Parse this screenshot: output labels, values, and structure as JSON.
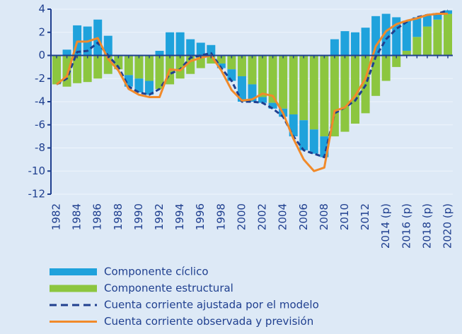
{
  "chart_data": {
    "type": "bar",
    "categories": [
      "1982",
      null,
      "1984",
      null,
      "1986",
      null,
      "1988",
      null,
      "1990",
      null,
      "1992",
      null,
      "1994",
      null,
      "1996",
      null,
      "1998",
      null,
      "2000",
      null,
      "2002",
      null,
      "2004",
      null,
      "2006",
      null,
      "2008",
      null,
      "2010",
      null,
      "2012",
      null,
      "2014 (p)",
      null,
      "2016 (p)",
      null,
      "2018 (p)",
      null,
      "2020 (p)"
    ],
    "series": [
      {
        "name": "Componente cíclico",
        "type": "bar",
        "color": "#1fa2dc",
        "values": [
          0,
          0.5,
          2.6,
          2.5,
          3.1,
          1.7,
          0,
          -1.0,
          -1.2,
          -1.2,
          0.4,
          2.0,
          2.0,
          1.4,
          1.1,
          0.9,
          -0.4,
          -1.0,
          -2.2,
          -1.5,
          -0.5,
          -0.5,
          -0.7,
          -1.9,
          -2.6,
          -2.1,
          -1.8,
          1.4,
          2.1,
          2.0,
          2.4,
          3.4,
          3.6,
          3.3,
          2.6,
          1.7,
          1.0,
          0.5,
          0.3
        ]
      },
      {
        "name": "Componente estructural",
        "type": "bar",
        "color": "#8cc63f",
        "values": [
          -2.5,
          -2.7,
          -2.4,
          -2.3,
          -2.0,
          -1.6,
          -1.2,
          -1.7,
          -2.0,
          -2.2,
          -2.9,
          -2.5,
          -2.0,
          -1.6,
          -1.1,
          -0.7,
          -0.7,
          -1.2,
          -1.8,
          -2.5,
          -3.6,
          -4.1,
          -4.6,
          -5.1,
          -5.6,
          -6.4,
          -7.0,
          -7.0,
          -6.6,
          -5.9,
          -5.0,
          -3.5,
          -2.2,
          -1.0,
          0.4,
          1.6,
          2.5,
          3.1,
          3.6
        ]
      },
      {
        "name": "Cuenta corriente ajustada por el modelo",
        "type": "line",
        "dashed": true,
        "color": "#1f3f8f",
        "values": [
          -2.5,
          -2.0,
          0.3,
          0.4,
          1.1,
          0.0,
          -1.0,
          -2.7,
          -3.2,
          -3.4,
          -2.9,
          -1.6,
          -1.2,
          -0.2,
          0.0,
          0.2,
          -1.1,
          -2.2,
          -4.0,
          -4.0,
          -4.1,
          -4.6,
          -5.3,
          -7.0,
          -8.2,
          -8.5,
          -8.8,
          -5.0,
          -4.5,
          -3.9,
          -2.6,
          -0.1,
          1.4,
          2.3,
          2.9,
          3.3,
          3.5,
          3.6,
          3.9
        ]
      },
      {
        "name": "Cuenta corriente observada y previsión",
        "type": "line",
        "dashed": false,
        "color": "#f18a2a",
        "values": [
          -2.5,
          -1.8,
          1.2,
          1.2,
          1.5,
          -0.3,
          -1.3,
          -2.9,
          -3.4,
          -3.6,
          -3.6,
          -1.2,
          -1.3,
          -0.5,
          -0.2,
          0.0,
          -1.3,
          -3.0,
          -3.9,
          -3.8,
          -3.3,
          -3.5,
          -5.0,
          -7.2,
          -9.0,
          -10.0,
          -9.7,
          -4.8,
          -4.5,
          -3.5,
          -2.0,
          0.8,
          2.1,
          2.7,
          3.0,
          3.2,
          3.5,
          3.6,
          3.6
        ]
      }
    ],
    "ylim": [
      -12,
      4
    ],
    "yticks": [
      -12,
      -10,
      -8,
      -6,
      -4,
      -2,
      0,
      2,
      4
    ],
    "grid": true
  }
}
